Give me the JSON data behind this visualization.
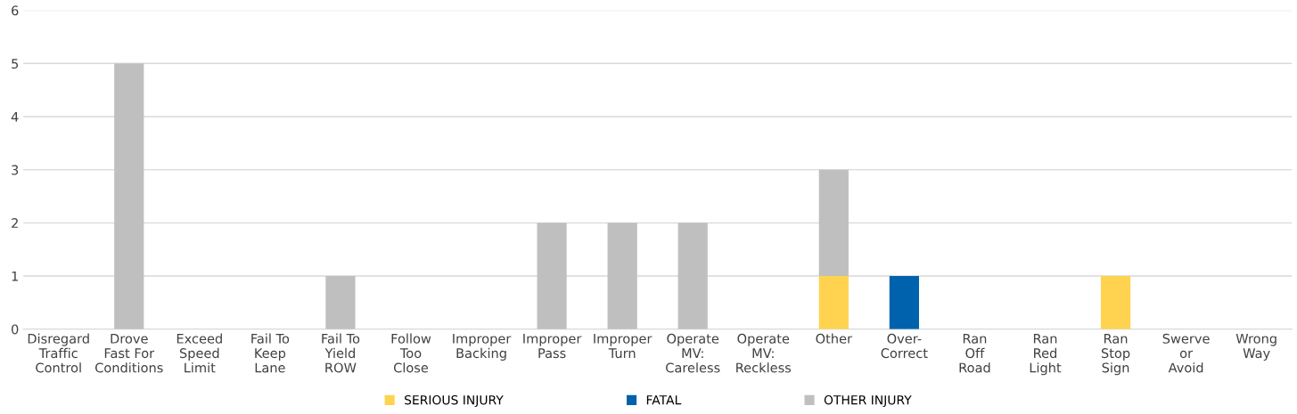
{
  "chart_data": {
    "type": "bar",
    "stacked": true,
    "categories": [
      "Disregard\nTraffic\nControl",
      "Drove\nFast For\nConditions",
      "Exceed\nSpeed\nLimit",
      "Fail To\nKeep\nLane",
      "Fail To\nYield\nROW",
      "Follow\nToo\nClose",
      "Improper\nBacking",
      "Improper\nPass",
      "Improper\nTurn",
      "Operate\nMV:\nCareless",
      "Operate\nMV:\nReckless",
      "Other",
      "Over-\nCorrect",
      "Ran\nOff\nRoad",
      "Ran\nRed\nLight",
      "Ran\nStop\nSign",
      "Swerve\nor\nAvoid",
      "Wrong\nWay"
    ],
    "series": [
      {
        "name": "SERIOUS INJURY",
        "color": "#ffd34f",
        "values": [
          0,
          0,
          0,
          0,
          0,
          0,
          0,
          0,
          0,
          0,
          0,
          1,
          0,
          0,
          0,
          1,
          0,
          0
        ]
      },
      {
        "name": "FATAL",
        "color": "#0062ac",
        "values": [
          0,
          0,
          0,
          0,
          0,
          0,
          0,
          0,
          0,
          0,
          0,
          0,
          1,
          0,
          0,
          0,
          0,
          0
        ]
      },
      {
        "name": "OTHER INJURY",
        "color": "#bfbfbf",
        "values": [
          0,
          5,
          0,
          0,
          1,
          0,
          0,
          2,
          2,
          2,
          0,
          2,
          0,
          0,
          0,
          0,
          0,
          0
        ]
      }
    ],
    "ylim": [
      0,
      6
    ],
    "yticks": [
      0,
      1,
      2,
      3,
      4,
      5,
      6
    ],
    "grid": "y",
    "legend": "bottom"
  }
}
